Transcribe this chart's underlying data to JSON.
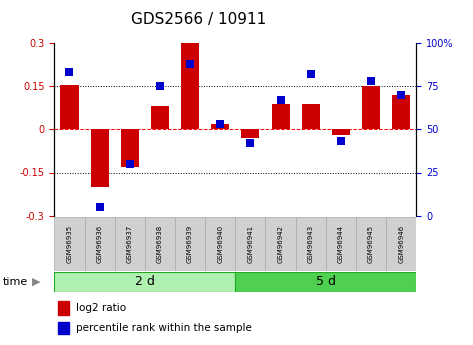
{
  "title": "GDS2566 / 10911",
  "samples": [
    "GSM96935",
    "GSM96936",
    "GSM96937",
    "GSM96938",
    "GSM96939",
    "GSM96940",
    "GSM96941",
    "GSM96942",
    "GSM96943",
    "GSM96944",
    "GSM96945",
    "GSM96946"
  ],
  "log2_ratio": [
    0.155,
    -0.2,
    -0.13,
    0.08,
    0.3,
    0.02,
    -0.03,
    0.09,
    0.09,
    -0.02,
    0.15,
    0.12
  ],
  "percentile_rank": [
    83,
    5,
    30,
    75,
    88,
    53,
    42,
    67,
    82,
    43,
    78,
    70
  ],
  "group1_label": "2 d",
  "group2_label": "5 d",
  "group1_count": 6,
  "group2_count": 6,
  "ylim_left": [
    -0.3,
    0.3
  ],
  "ylim_right": [
    0,
    100
  ],
  "yticks_left": [
    -0.3,
    -0.15,
    0.0,
    0.15,
    0.3
  ],
  "yticks_right": [
    0,
    25,
    50,
    75,
    100
  ],
  "hlines": [
    -0.15,
    0.0,
    0.15
  ],
  "bar_color": "#cc0000",
  "dot_color": "#0000cc",
  "bar_width": 0.6,
  "dot_size": 28,
  "group1_bg": "#b0f0b0",
  "group2_bg": "#50d050",
  "sample_bg": "#d0d0d0",
  "legend_bar_label": "log2 ratio",
  "legend_dot_label": "percentile rank within the sample",
  "time_label": "time",
  "title_fontsize": 11,
  "tick_fontsize": 7,
  "sample_fontsize": 5
}
